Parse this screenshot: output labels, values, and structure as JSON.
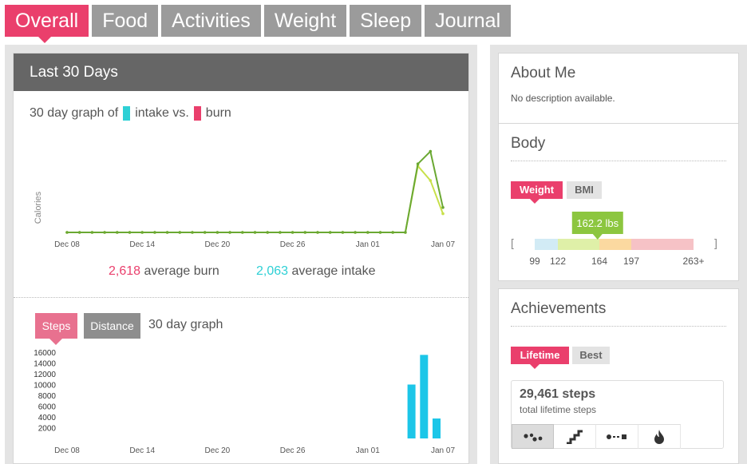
{
  "tabs": [
    {
      "label": "Overall",
      "active": true
    },
    {
      "label": "Food",
      "active": false
    },
    {
      "label": "Activities",
      "active": false
    },
    {
      "label": "Weight",
      "active": false
    },
    {
      "label": "Sleep",
      "active": false
    },
    {
      "label": "Journal",
      "active": false
    }
  ],
  "overview": {
    "header": "Last 30 Days",
    "legend_prefix": "30 day graph of",
    "legend_intake": "intake vs.",
    "legend_burn": "burn",
    "avg_burn_value": "2,618",
    "avg_burn_label": "average burn",
    "avg_intake_value": "2,063",
    "avg_intake_label": "average intake"
  },
  "steps_graph": {
    "steps_label": "Steps",
    "distance_label": "Distance",
    "title": "30 day graph"
  },
  "about": {
    "title": "About Me",
    "description": "No description available."
  },
  "body": {
    "title": "Body",
    "weight_label": "Weight",
    "bmi_label": "BMI",
    "weight_value": "162.2 lbs",
    "weight_numeric": 162.2,
    "scale_ticks": [
      "99",
      "122",
      "164",
      "197",
      "263+"
    ],
    "bracket_left": "[",
    "bracket_right": "]"
  },
  "achievements": {
    "title": "Achievements",
    "lifetime_label": "Lifetime",
    "best_label": "Best",
    "steps_value": "29,461",
    "steps_unit": "steps",
    "subtitle": "total lifetime steps",
    "icons": [
      "footsteps-icon",
      "stairs-icon",
      "distance-icon",
      "flame-icon"
    ]
  },
  "colors": {
    "accent": "#ea3f6c",
    "intake": "#2ed0d5",
    "burn": "#ea3f6c",
    "steps_bar": "#1cc6e8",
    "line_light": "#c8e04a",
    "line_dark": "#6aa832"
  },
  "chart_data": [
    {
      "type": "line",
      "ylabel": "Calories",
      "x_ticks": [
        "Dec 08",
        "Dec 14",
        "Dec 20",
        "Dec 26",
        "Jan 01",
        "Jan 07"
      ],
      "x": [
        "Dec 08",
        "Dec 09",
        "Dec 10",
        "Dec 11",
        "Dec 12",
        "Dec 13",
        "Dec 14",
        "Dec 15",
        "Dec 16",
        "Dec 17",
        "Dec 18",
        "Dec 19",
        "Dec 20",
        "Dec 21",
        "Dec 22",
        "Dec 23",
        "Dec 24",
        "Dec 25",
        "Dec 26",
        "Dec 27",
        "Dec 28",
        "Dec 29",
        "Dec 30",
        "Dec 31",
        "Jan 01",
        "Jan 02",
        "Jan 03",
        "Jan 04",
        "Jan 05",
        "Jan 06",
        "Jan 07"
      ],
      "series": [
        {
          "name": "burn",
          "values": [
            0,
            0,
            0,
            0,
            0,
            0,
            0,
            0,
            0,
            0,
            0,
            0,
            0,
            0,
            0,
            0,
            0,
            0,
            0,
            0,
            0,
            0,
            0,
            0,
            0,
            0,
            0,
            0,
            3300,
            3900,
            1200
          ]
        },
        {
          "name": "intake",
          "values": [
            0,
            0,
            0,
            0,
            0,
            0,
            0,
            0,
            0,
            0,
            0,
            0,
            0,
            0,
            0,
            0,
            0,
            0,
            0,
            0,
            0,
            0,
            0,
            0,
            0,
            0,
            0,
            0,
            3200,
            2500,
            900
          ]
        }
      ]
    },
    {
      "type": "bar",
      "x_ticks": [
        "Dec 08",
        "Dec 14",
        "Dec 20",
        "Dec 26",
        "Jan 01",
        "Jan 07"
      ],
      "y_ticks": [
        2000,
        4000,
        6000,
        8000,
        10000,
        12000,
        14000,
        16000
      ],
      "ylim": [
        0,
        16000
      ],
      "categories": [
        "Jan 05",
        "Jan 06",
        "Jan 07"
      ],
      "values": [
        10000,
        15500,
        3700
      ]
    }
  ]
}
